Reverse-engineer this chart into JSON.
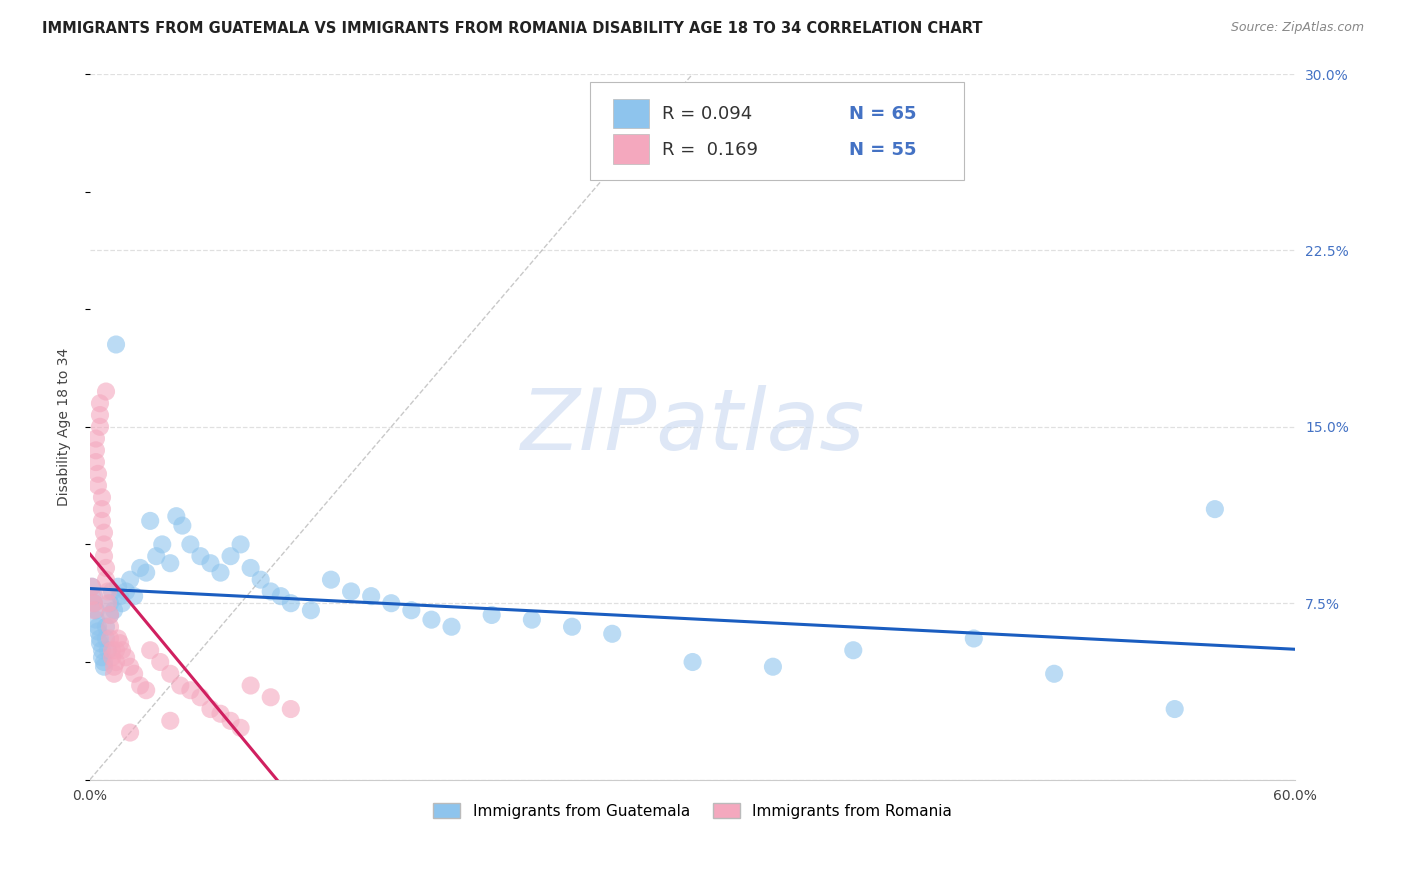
{
  "title": "IMMIGRANTS FROM GUATEMALA VS IMMIGRANTS FROM ROMANIA DISABILITY AGE 18 TO 34 CORRELATION CHART",
  "source": "Source: ZipAtlas.com",
  "ylabel": "Disability Age 18 to 34",
  "legend_labels": [
    "Immigrants from Guatemala",
    "Immigrants from Romania"
  ],
  "r_guatemala": 0.094,
  "r_romania": 0.169,
  "n_guatemala": 65,
  "n_romania": 55,
  "xlim": [
    0.0,
    0.6
  ],
  "ylim": [
    0.0,
    0.3
  ],
  "xtick_positions": [
    0.0,
    0.1,
    0.2,
    0.3,
    0.4,
    0.5,
    0.6
  ],
  "xtick_labels": [
    "0.0%",
    "",
    "",
    "",
    "",
    "",
    "60.0%"
  ],
  "ytick_positions": [
    0.0,
    0.075,
    0.15,
    0.225,
    0.3
  ],
  "ytick_labels": [
    "",
    "7.5%",
    "15.0%",
    "22.5%",
    "30.0%"
  ],
  "color_guatemala": "#8EC4ED",
  "color_romania": "#F4A8BE",
  "color_trendline_guatemala": "#1A5DC0",
  "color_trendline_romania": "#D02060",
  "color_diagonal": "#BBBBBB",
  "color_grid": "#E0E0E0",
  "watermark_text": "ZIPatlas",
  "watermark_color": "#C8D8F0",
  "guatemala_x": [
    0.001,
    0.002,
    0.002,
    0.003,
    0.003,
    0.004,
    0.004,
    0.005,
    0.005,
    0.006,
    0.006,
    0.007,
    0.007,
    0.008,
    0.008,
    0.009,
    0.01,
    0.01,
    0.011,
    0.012,
    0.013,
    0.014,
    0.015,
    0.016,
    0.018,
    0.02,
    0.022,
    0.025,
    0.028,
    0.03,
    0.033,
    0.036,
    0.04,
    0.043,
    0.046,
    0.05,
    0.055,
    0.06,
    0.065,
    0.07,
    0.075,
    0.08,
    0.085,
    0.09,
    0.095,
    0.1,
    0.11,
    0.12,
    0.13,
    0.14,
    0.15,
    0.16,
    0.17,
    0.18,
    0.2,
    0.22,
    0.24,
    0.26,
    0.3,
    0.34,
    0.38,
    0.44,
    0.48,
    0.54,
    0.56
  ],
  "guatemala_y": [
    0.082,
    0.078,
    0.075,
    0.072,
    0.068,
    0.065,
    0.063,
    0.06,
    0.058,
    0.055,
    0.052,
    0.05,
    0.048,
    0.06,
    0.065,
    0.055,
    0.07,
    0.075,
    0.08,
    0.072,
    0.185,
    0.082,
    0.078,
    0.075,
    0.08,
    0.085,
    0.078,
    0.09,
    0.088,
    0.11,
    0.095,
    0.1,
    0.092,
    0.112,
    0.108,
    0.1,
    0.095,
    0.092,
    0.088,
    0.095,
    0.1,
    0.09,
    0.085,
    0.08,
    0.078,
    0.075,
    0.072,
    0.085,
    0.08,
    0.078,
    0.075,
    0.072,
    0.068,
    0.065,
    0.07,
    0.068,
    0.065,
    0.062,
    0.05,
    0.048,
    0.055,
    0.06,
    0.045,
    0.03,
    0.115
  ],
  "romania_x": [
    0.001,
    0.001,
    0.002,
    0.002,
    0.003,
    0.003,
    0.003,
    0.004,
    0.004,
    0.005,
    0.005,
    0.005,
    0.006,
    0.006,
    0.006,
    0.007,
    0.007,
    0.007,
    0.008,
    0.008,
    0.008,
    0.009,
    0.009,
    0.01,
    0.01,
    0.01,
    0.011,
    0.011,
    0.012,
    0.012,
    0.013,
    0.013,
    0.014,
    0.015,
    0.016,
    0.018,
    0.02,
    0.022,
    0.025,
    0.028,
    0.03,
    0.035,
    0.04,
    0.045,
    0.05,
    0.055,
    0.06,
    0.065,
    0.07,
    0.075,
    0.08,
    0.09,
    0.1,
    0.04,
    0.02
  ],
  "romania_y": [
    0.082,
    0.078,
    0.075,
    0.072,
    0.145,
    0.14,
    0.135,
    0.13,
    0.125,
    0.16,
    0.155,
    0.15,
    0.12,
    0.115,
    0.11,
    0.105,
    0.1,
    0.095,
    0.09,
    0.085,
    0.165,
    0.08,
    0.075,
    0.07,
    0.065,
    0.06,
    0.055,
    0.052,
    0.048,
    0.045,
    0.05,
    0.055,
    0.06,
    0.058,
    0.055,
    0.052,
    0.048,
    0.045,
    0.04,
    0.038,
    0.055,
    0.05,
    0.045,
    0.04,
    0.038,
    0.035,
    0.03,
    0.028,
    0.025,
    0.022,
    0.04,
    0.035,
    0.03,
    0.025,
    0.02
  ],
  "title_fontsize": 10.5,
  "source_fontsize": 9,
  "ylabel_fontsize": 10,
  "tick_fontsize": 10,
  "scatter_size": 170,
  "scatter_alpha": 0.6,
  "trendline_lw": 2.2
}
